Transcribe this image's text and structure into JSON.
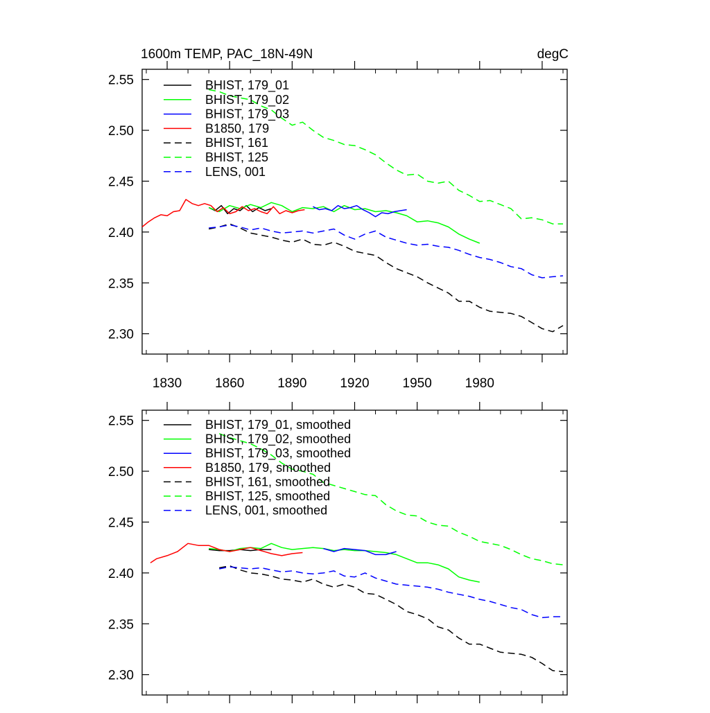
{
  "chart_data": [
    {
      "type": "line",
      "title": "1600m TEMP, PAC_18N-49N",
      "units": "degC",
      "xlabel": "",
      "ylabel": "",
      "xlim": [
        1818,
        2022
      ],
      "ylim": [
        2.28,
        2.56
      ],
      "xticks": [
        1830,
        1860,
        1890,
        1920,
        1950,
        1980
      ],
      "yticks": [
        2.3,
        2.35,
        2.4,
        2.45,
        2.5,
        2.55
      ],
      "ytick_labels": [
        "2.30",
        "2.35",
        "2.40",
        "2.45",
        "2.50",
        "2.55"
      ],
      "grid": false,
      "legend": "top-left",
      "series": [
        {
          "name": "BHIST, 179_01",
          "color": "#000000",
          "dash": "solid",
          "x": [
            1850,
            1853,
            1856,
            1859,
            1862,
            1865,
            1868,
            1871,
            1874,
            1877,
            1880
          ],
          "y": [
            2.424,
            2.421,
            2.426,
            2.418,
            2.423,
            2.421,
            2.426,
            2.42,
            2.424,
            2.421,
            2.423
          ]
        },
        {
          "name": "BHIST, 179_02",
          "color": "#00ff00",
          "dash": "solid",
          "x": [
            1850,
            1855,
            1860,
            1865,
            1870,
            1875,
            1880,
            1885,
            1890,
            1895,
            1900,
            1905,
            1910,
            1915,
            1920,
            1925,
            1930,
            1935,
            1940,
            1945,
            1950,
            1955,
            1960,
            1965,
            1970,
            1975,
            1980
          ],
          "y": [
            2.424,
            2.42,
            2.426,
            2.423,
            2.427,
            2.424,
            2.429,
            2.426,
            2.42,
            2.424,
            2.423,
            2.425,
            2.42,
            2.426,
            2.422,
            2.423,
            2.42,
            2.421,
            2.419,
            2.416,
            2.41,
            2.411,
            2.409,
            2.405,
            2.398,
            2.393,
            2.389
          ]
        },
        {
          "name": "BHIST, 179_03",
          "color": "#0000ff",
          "dash": "solid",
          "x": [
            1900,
            1903,
            1906,
            1909,
            1912,
            1915,
            1918,
            1921,
            1924,
            1927,
            1930,
            1933,
            1936,
            1939,
            1942,
            1945
          ],
          "y": [
            2.425,
            2.422,
            2.423,
            2.421,
            2.426,
            2.423,
            2.424,
            2.426,
            2.422,
            2.419,
            2.415,
            2.419,
            2.418,
            2.42,
            2.421,
            2.422
          ]
        },
        {
          "name": "B1850, 179",
          "color": "#ff0000",
          "dash": "solid",
          "x": [
            1818,
            1821,
            1824,
            1827,
            1830,
            1833,
            1836,
            1839,
            1842,
            1845,
            1848,
            1851,
            1854,
            1857,
            1860,
            1863,
            1866,
            1869,
            1872,
            1875,
            1878,
            1881,
            1884,
            1887,
            1890,
            1893,
            1896
          ],
          "y": [
            2.405,
            2.41,
            2.414,
            2.417,
            2.416,
            2.42,
            2.421,
            2.432,
            2.428,
            2.426,
            2.428,
            2.426,
            2.42,
            2.424,
            2.418,
            2.42,
            2.425,
            2.421,
            2.423,
            2.42,
            2.418,
            2.425,
            2.418,
            2.421,
            2.419,
            2.421,
            2.422
          ]
        },
        {
          "name": "BHIST, 161",
          "color": "#000000",
          "dash": "dashed",
          "x": [
            1850,
            1855,
            1860,
            1865,
            1870,
            1875,
            1880,
            1885,
            1890,
            1895,
            1900,
            1905,
            1910,
            1915,
            1920,
            1925,
            1930,
            1935,
            1940,
            1945,
            1950,
            1955,
            1960,
            1965,
            1970,
            1975,
            1980,
            1985,
            1990,
            1995,
            2000,
            2005,
            2010,
            2015,
            2020
          ],
          "y": [
            2.403,
            2.405,
            2.408,
            2.404,
            2.399,
            2.397,
            2.395,
            2.392,
            2.39,
            2.393,
            2.388,
            2.387,
            2.39,
            2.386,
            2.381,
            2.379,
            2.377,
            2.37,
            2.364,
            2.36,
            2.356,
            2.35,
            2.345,
            2.34,
            2.332,
            2.332,
            2.326,
            2.322,
            2.321,
            2.32,
            2.317,
            2.311,
            2.305,
            2.302,
            2.308
          ]
        },
        {
          "name": "BHIST, 125",
          "color": "#00ff00",
          "dash": "dashed",
          "x": [
            1850,
            1855,
            1860,
            1865,
            1870,
            1875,
            1880,
            1885,
            1890,
            1895,
            1900,
            1905,
            1910,
            1915,
            1920,
            1925,
            1930,
            1935,
            1940,
            1945,
            1950,
            1955,
            1960,
            1965,
            1970,
            1975,
            1980,
            1985,
            1990,
            1995,
            2000,
            2005,
            2010,
            2015,
            2020
          ],
          "y": [
            2.54,
            2.538,
            2.534,
            2.532,
            2.53,
            2.524,
            2.52,
            2.512,
            2.505,
            2.508,
            2.5,
            2.493,
            2.49,
            2.486,
            2.485,
            2.481,
            2.476,
            2.468,
            2.461,
            2.456,
            2.457,
            2.45,
            2.448,
            2.45,
            2.441,
            2.436,
            2.43,
            2.431,
            2.427,
            2.423,
            2.413,
            2.414,
            2.412,
            2.408,
            2.408
          ]
        },
        {
          "name": "LENS, 001",
          "color": "#0000ff",
          "dash": "dashed",
          "x": [
            1850,
            1855,
            1860,
            1865,
            1870,
            1875,
            1880,
            1885,
            1890,
            1895,
            1900,
            1905,
            1910,
            1915,
            1920,
            1925,
            1930,
            1935,
            1940,
            1945,
            1950,
            1955,
            1960,
            1965,
            1970,
            1975,
            1980,
            1985,
            1990,
            1995,
            2000,
            2005,
            2010,
            2015,
            2020
          ],
          "y": [
            2.404,
            2.405,
            2.407,
            2.405,
            2.402,
            2.404,
            2.401,
            2.399,
            2.4,
            2.401,
            2.399,
            2.401,
            2.403,
            2.397,
            2.393,
            2.398,
            2.401,
            2.395,
            2.392,
            2.389,
            2.387,
            2.388,
            2.386,
            2.385,
            2.382,
            2.378,
            2.375,
            2.373,
            2.37,
            2.366,
            2.364,
            2.358,
            2.355,
            2.356,
            2.357
          ]
        }
      ]
    },
    {
      "type": "line",
      "title": "",
      "xlabel": "",
      "ylabel": "",
      "xlim": [
        1818,
        2022
      ],
      "ylim": [
        2.28,
        2.56
      ],
      "xticks": [
        1830,
        1860,
        1890,
        1920,
        1950,
        1980
      ],
      "yticks": [
        2.3,
        2.35,
        2.4,
        2.45,
        2.5,
        2.55
      ],
      "ytick_labels": [
        "2.30",
        "2.35",
        "2.40",
        "2.45",
        "2.50",
        "2.55"
      ],
      "grid": false,
      "legend": "top-left",
      "series": [
        {
          "name": "BHIST, 179_01, smoothed",
          "color": "#000000",
          "dash": "solid",
          "x": [
            1850,
            1855,
            1860,
            1865,
            1870,
            1875,
            1880
          ],
          "y": [
            2.423,
            2.422,
            2.422,
            2.423,
            2.422,
            2.423,
            2.423
          ]
        },
        {
          "name": "BHIST, 179_02, smoothed",
          "color": "#00ff00",
          "dash": "solid",
          "x": [
            1850,
            1855,
            1860,
            1865,
            1870,
            1875,
            1880,
            1885,
            1890,
            1895,
            1900,
            1905,
            1910,
            1915,
            1920,
            1925,
            1930,
            1935,
            1940,
            1945,
            1950,
            1955,
            1960,
            1965,
            1970,
            1975,
            1980
          ],
          "y": [
            2.424,
            2.423,
            2.421,
            2.424,
            2.425,
            2.424,
            2.429,
            2.425,
            2.423,
            2.424,
            2.425,
            2.424,
            2.422,
            2.423,
            2.422,
            2.422,
            2.421,
            2.42,
            2.418,
            2.414,
            2.41,
            2.41,
            2.408,
            2.404,
            2.396,
            2.393,
            2.391
          ]
        },
        {
          "name": "BHIST, 179_03, smoothed",
          "color": "#0000ff",
          "dash": "solid",
          "x": [
            1905,
            1910,
            1915,
            1920,
            1925,
            1930,
            1935,
            1940
          ],
          "y": [
            2.424,
            2.421,
            2.424,
            2.423,
            2.422,
            2.418,
            2.418,
            2.421
          ]
        },
        {
          "name": "B1850, 179, smoothed",
          "color": "#ff0000",
          "dash": "solid",
          "x": [
            1822,
            1825,
            1830,
            1835,
            1840,
            1845,
            1850,
            1855,
            1860,
            1865,
            1870,
            1875,
            1880,
            1885,
            1890,
            1895
          ],
          "y": [
            2.41,
            2.414,
            2.417,
            2.421,
            2.429,
            2.427,
            2.427,
            2.423,
            2.421,
            2.423,
            2.425,
            2.422,
            2.419,
            2.417,
            2.419,
            2.42
          ]
        },
        {
          "name": "BHIST, 161, smoothed",
          "color": "#000000",
          "dash": "dashed",
          "x": [
            1855,
            1860,
            1865,
            1870,
            1875,
            1880,
            1885,
            1890,
            1895,
            1900,
            1905,
            1910,
            1915,
            1920,
            1925,
            1930,
            1935,
            1940,
            1945,
            1950,
            1955,
            1960,
            1965,
            1970,
            1975,
            1980,
            1985,
            1990,
            1995,
            2000,
            2005,
            2010,
            2015,
            2020
          ],
          "y": [
            2.405,
            2.407,
            2.403,
            2.4,
            2.399,
            2.397,
            2.394,
            2.393,
            2.391,
            2.394,
            2.389,
            2.386,
            2.389,
            2.386,
            2.38,
            2.379,
            2.374,
            2.369,
            2.362,
            2.359,
            2.355,
            2.347,
            2.344,
            2.336,
            2.33,
            2.33,
            2.326,
            2.322,
            2.321,
            2.32,
            2.317,
            2.311,
            2.304,
            2.303
          ]
        },
        {
          "name": "BHIST, 125, smoothed",
          "color": "#00ff00",
          "dash": "dashed",
          "x": [
            1855,
            1860,
            1865,
            1870,
            1875,
            1880,
            1885,
            1890,
            1895,
            1900,
            1905,
            1910,
            1915,
            1920,
            1925,
            1930,
            1935,
            1940,
            1945,
            1950,
            1955,
            1960,
            1965,
            1970,
            1975,
            1980,
            1985,
            1990,
            1995,
            2000,
            2005,
            2010,
            2015,
            2020
          ],
          "y": [
            2.537,
            2.533,
            2.53,
            2.527,
            2.522,
            2.516,
            2.508,
            2.502,
            2.5,
            2.497,
            2.489,
            2.486,
            2.483,
            2.48,
            2.477,
            2.476,
            2.467,
            2.461,
            2.457,
            2.456,
            2.45,
            2.447,
            2.446,
            2.44,
            2.436,
            2.431,
            2.429,
            2.427,
            2.423,
            2.418,
            2.414,
            2.412,
            2.409,
            2.408
          ]
        },
        {
          "name": "LENS, 001, smoothed",
          "color": "#0000ff",
          "dash": "dashed",
          "x": [
            1855,
            1860,
            1865,
            1870,
            1875,
            1880,
            1885,
            1890,
            1895,
            1900,
            1905,
            1910,
            1915,
            1920,
            1925,
            1930,
            1935,
            1940,
            1945,
            1950,
            1955,
            1960,
            1965,
            1970,
            1975,
            1980,
            1985,
            1990,
            1995,
            2000,
            2005,
            2010,
            2015,
            2020
          ],
          "y": [
            2.404,
            2.406,
            2.405,
            2.404,
            2.405,
            2.403,
            2.401,
            2.402,
            2.4,
            2.399,
            2.4,
            2.402,
            2.397,
            2.396,
            2.4,
            2.395,
            2.392,
            2.389,
            2.388,
            2.387,
            2.386,
            2.384,
            2.381,
            2.379,
            2.377,
            2.374,
            2.372,
            2.369,
            2.366,
            2.364,
            2.359,
            2.356,
            2.357,
            2.357
          ]
        }
      ]
    }
  ]
}
